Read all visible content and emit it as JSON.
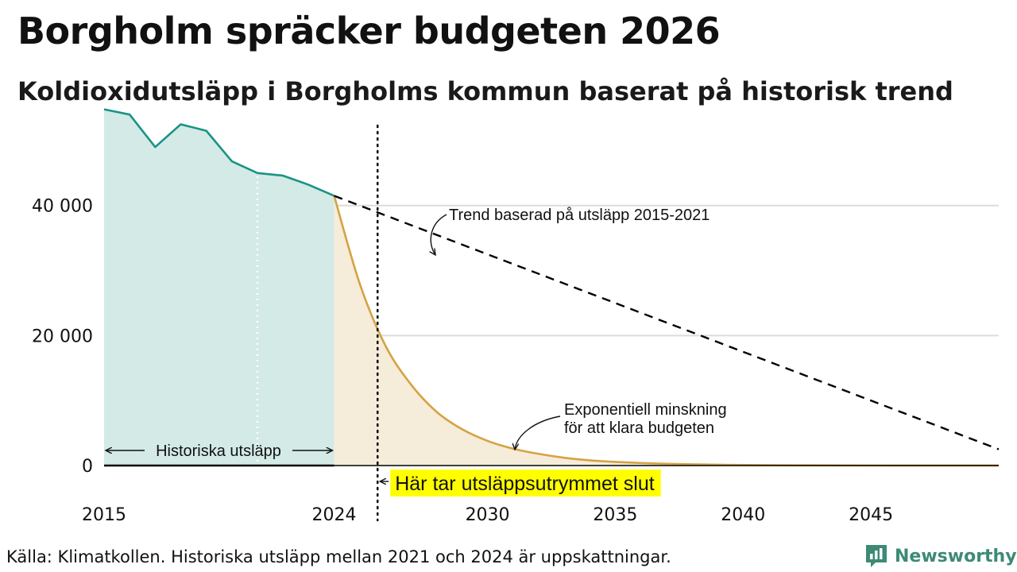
{
  "header": {
    "title": "Borgholm spräcker budgeten 2026",
    "subtitle": "Koldioxidutsläpp i Borgholms kommun baserat på historisk trend"
  },
  "footer": {
    "source": "Källa: Klimatkollen. Historiska utsläpp mellan 2021 och 2024 är uppskattningar.",
    "brand": "Newsworthy"
  },
  "colors": {
    "historical_line": "#1a9384",
    "historical_fill": "#d3eae6",
    "budget_line": "#d4a342",
    "budget_fill": "#f5ecda",
    "gridline": "#dcdcdc",
    "highlight": "#ffff00",
    "brand": "#3d8a75"
  },
  "chart_data": {
    "type": "area",
    "title": "Koldioxidutsläpp i Borgholms kommun baserat på historisk trend",
    "xlim": [
      2015,
      2050
    ],
    "ylim": [
      0,
      55000
    ],
    "x_ticks": [
      2015,
      2024,
      2030,
      2035,
      2040,
      2045
    ],
    "x_tick_labels": [
      "2015",
      "2024",
      "2030",
      "2035",
      "2040",
      "2045"
    ],
    "y_ticks": [
      0,
      20000,
      40000
    ],
    "y_tick_labels": [
      "0",
      "20 000",
      "40 000"
    ],
    "grid": true,
    "series": [
      {
        "style": "solid-area",
        "color": "#1a9384",
        "x": [
          2015,
          2016,
          2017,
          2018,
          2019,
          2020,
          2021,
          2022,
          2023,
          2024
        ],
        "y": [
          54800,
          54000,
          49000,
          52500,
          51500,
          46800,
          45000,
          44600,
          43200,
          41500
        ]
      },
      {
        "name": "Trend baserad på utsläpp 2015-2021",
        "style": "dashed",
        "color": "#000000",
        "x": [
          2024,
          2050
        ],
        "y": [
          41500,
          2500
        ]
      },
      {
        "name": "Exponentiell minskning för att klara budgeten",
        "style": "solid-area",
        "color": "#d4a342",
        "x": [
          2024,
          2025,
          2026,
          2027,
          2028,
          2029,
          2030,
          2031,
          2032,
          2033,
          2034,
          2035,
          2036,
          2037,
          2038,
          2039,
          2040,
          2042,
          2045,
          2050
        ],
        "y": [
          41500,
          28000,
          18500,
          12500,
          8300,
          5600,
          3800,
          2600,
          1800,
          1200,
          800,
          560,
          390,
          270,
          190,
          130,
          90,
          45,
          15,
          2
        ]
      }
    ],
    "annotations": {
      "historical": "Historiska utsläpp",
      "trend": "Trend baserad på utsläpp 2015-2021",
      "exp_line1": "Exponentiell minskning",
      "exp_line2": "för att klara budgeten",
      "budget_end": "Här tar utsläppsutrymmet slut",
      "budget_end_x": 2025.7,
      "historical_estimate_from_x": 2021
    }
  }
}
